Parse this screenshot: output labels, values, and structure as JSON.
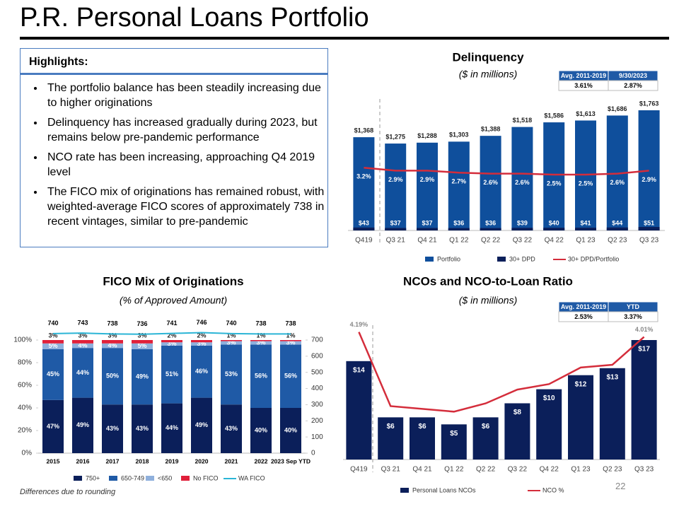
{
  "title": "P.R. Personal Loans Portfolio",
  "highlights": {
    "heading": "Highlights:",
    "bullets": [
      "The portfolio balance has been steadily increasing due to higher originations",
      "Delinquency has increased gradually during 2023, but remains below pre-pandemic performance",
      "NCO rate has been increasing, approaching Q4 2019 level",
      "The FICO mix of originations has remained robust, with weighted-average FICO scores of approximately 738 in recent vintages, similar to pre-pandemic"
    ]
  },
  "chart_data": [
    {
      "type": "bar",
      "title": "Delinquency",
      "subtitle": "($ in millions)",
      "categories": [
        "Q419",
        "Q3 21",
        "Q4 21",
        "Q1 22",
        "Q2 22",
        "Q3 22",
        "Q4 22",
        "Q1 23",
        "Q2 23",
        "Q3 23"
      ],
      "series": [
        {
          "name": "Portfolio",
          "color": "#0f4f9c",
          "values": [
            1368,
            1275,
            1288,
            1303,
            1388,
            1518,
            1586,
            1613,
            1686,
            1763
          ],
          "value_labels": [
            "$1,368",
            "$1,275",
            "$1,288",
            "$1,303",
            "$1,388",
            "$1,518",
            "$1,586",
            "$1,613",
            "$1,686",
            "$1,763"
          ]
        },
        {
          "name": "30+ DPD",
          "color": "#0b1f5a",
          "values": [
            43,
            37,
            37,
            36,
            36,
            39,
            40,
            41,
            44,
            51
          ],
          "value_labels": [
            "$43",
            "$37",
            "$37",
            "$36",
            "$36",
            "$39",
            "$40",
            "$41",
            "$44",
            "$51"
          ]
        },
        {
          "name": "30+ DPD/Portfolio",
          "color": "#d42d3b",
          "type": "line",
          "axis": "y2",
          "values": [
            3.2,
            2.9,
            2.9,
            2.7,
            2.6,
            2.6,
            2.5,
            2.5,
            2.6,
            2.9
          ],
          "value_labels": [
            "3.2%",
            "2.9%",
            "2.9%",
            "2.7%",
            "2.6%",
            "2.6%",
            "2.5%",
            "2.5%",
            "2.6%",
            "2.9%"
          ]
        }
      ],
      "summary_table": {
        "headers": [
          "Avg. 2011-2019",
          "9/30/2023"
        ],
        "row": [
          "3.61%",
          "2.87%"
        ]
      }
    },
    {
      "type": "stacked_bar",
      "title": "FICO Mix of Originations",
      "subtitle": "(% of Approved Amount)",
      "categories": [
        "2015",
        "2016",
        "2017",
        "2018",
        "2019",
        "2020",
        "2021",
        "2022",
        "2023 Sep YTD"
      ],
      "ylim": [
        0,
        100
      ],
      "yticks": [
        {
          "value": 0,
          "label": "0%"
        },
        {
          "value": 20,
          "label": "20%"
        },
        {
          "value": 40,
          "label": "40%"
        },
        {
          "value": 60,
          "label": "60%"
        },
        {
          "value": 80,
          "label": "80%"
        },
        {
          "value": 100,
          "label": "100%"
        }
      ],
      "y2lim": [
        0,
        700
      ],
      "y2ticks": [
        0,
        100,
        200,
        300,
        400,
        500,
        600,
        700
      ],
      "series": [
        {
          "name": "750+",
          "color": "#0b1f5a",
          "values": [
            47,
            49,
            43,
            43,
            44,
            49,
            43,
            40,
            40
          ],
          "value_labels": [
            "47%",
            "49%",
            "43%",
            "43%",
            "44%",
            "49%",
            "43%",
            "40%",
            "40%"
          ]
        },
        {
          "name": "650-749",
          "color": "#1f5aa6",
          "values": [
            45,
            44,
            50,
            49,
            51,
            46,
            53,
            56,
            56
          ],
          "value_labels": [
            "45%",
            "44%",
            "50%",
            "49%",
            "51%",
            "46%",
            "53%",
            "56%",
            "56%"
          ]
        },
        {
          "name": "<650",
          "color": "#8fb0dc",
          "values": [
            5,
            4,
            4,
            5,
            3,
            3,
            3,
            3,
            3
          ],
          "value_labels": [
            "5%",
            "4%",
            "4%",
            "5%",
            "3%",
            "3%",
            "3%",
            "3%",
            "3%"
          ]
        },
        {
          "name": "No FICO",
          "color": "#e0203a",
          "values": [
            3,
            3,
            3,
            3,
            2,
            2,
            1,
            1,
            1
          ],
          "value_labels": [
            "3%",
            "3%",
            "3%",
            "3%",
            "2%",
            "2%",
            "1%",
            "1%",
            "1%"
          ]
        },
        {
          "name": "WA FICO",
          "color": "#2bb5d6",
          "type": "line",
          "axis": "y2",
          "values": [
            740,
            743,
            738,
            736,
            741,
            746,
            740,
            738,
            738
          ]
        }
      ]
    },
    {
      "type": "bar",
      "title": "NCOs and NCO-to-Loan Ratio",
      "subtitle": "($ in millions)",
      "categories": [
        "Q419",
        "Q3 21",
        "Q4 21",
        "Q1 22",
        "Q2 22",
        "Q3 22",
        "Q4 22",
        "Q1 23",
        "Q2 23",
        "Q3 23"
      ],
      "series": [
        {
          "name": "Personal Loans NCOs",
          "color": "#0b1f5a",
          "values": [
            14,
            6,
            6,
            5,
            6,
            8,
            10,
            12,
            13,
            17
          ],
          "value_labels": [
            "$14",
            "$6",
            "$6",
            "$5",
            "$6",
            "$8",
            "$10",
            "$12",
            "$13",
            "$17"
          ]
        },
        {
          "name": "NCO %",
          "color": "#d42d3b",
          "type": "line",
          "axis": "y2",
          "values": [
            4.19,
            1.5,
            1.4,
            1.3,
            1.6,
            2.1,
            2.3,
            2.9,
            3.0,
            4.01
          ],
          "value_labels": [
            "4.19%",
            null,
            null,
            null,
            null,
            null,
            null,
            null,
            null,
            "4.01%"
          ]
        }
      ],
      "summary_table": {
        "headers": [
          "Avg. 2011-2019",
          "YTD"
        ],
        "row": [
          "2.53%",
          "3.37%"
        ]
      }
    }
  ],
  "footnote": "Differences due to rounding",
  "page_number": 22
}
